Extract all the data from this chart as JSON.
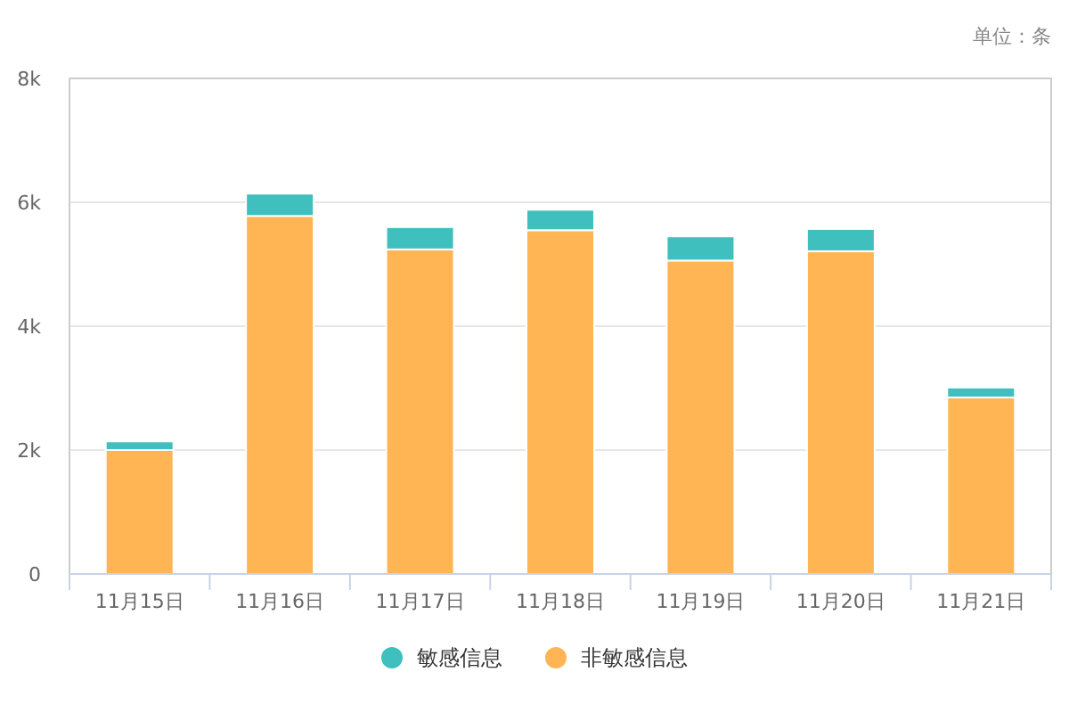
{
  "chart_data": {
    "type": "bar",
    "stacked": true,
    "annotations": [
      "单位：条"
    ],
    "categories": [
      "11月15日",
      "11月16日",
      "11月17日",
      "11月18日",
      "11月19日",
      "11月20日",
      "11月21日"
    ],
    "series": [
      {
        "name": "非敏感信息",
        "color": "#ffb554",
        "values": [
          2000,
          5780,
          5240,
          5550,
          5060,
          5210,
          2850
        ]
      },
      {
        "name": "敏感信息",
        "color": "#3fbfbd",
        "values": [
          140,
          360,
          360,
          330,
          390,
          360,
          160
        ]
      }
    ],
    "ylim": [
      0,
      8000
    ],
    "yticks": [
      {
        "value": 0,
        "label": "0"
      },
      {
        "value": 2000,
        "label": "2k"
      },
      {
        "value": 4000,
        "label": "4k"
      },
      {
        "value": 6000,
        "label": "6k"
      },
      {
        "value": 8000,
        "label": "8k"
      }
    ],
    "grid": "y",
    "legend": "bottom"
  }
}
